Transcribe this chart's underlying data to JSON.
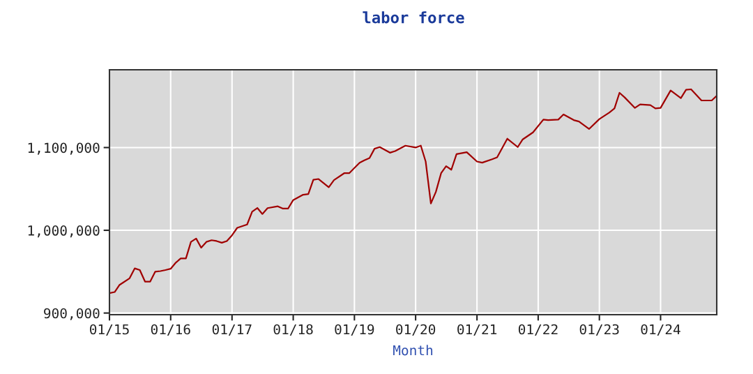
{
  "chart_data": {
    "type": "line",
    "title": "labor force",
    "xlabel": "Month",
    "x": [
      "2015-01",
      "2015-02",
      "2015-03",
      "2015-05",
      "2015-06",
      "2015-07",
      "2015-08",
      "2015-09",
      "2015-10",
      "2015-11",
      "2015-12",
      "2016-01",
      "2016-02",
      "2016-03",
      "2016-04",
      "2016-05",
      "2016-06",
      "2016-07",
      "2016-08",
      "2016-09",
      "2016-10",
      "2016-11",
      "2016-12",
      "2017-01",
      "2017-02",
      "2017-04",
      "2017-05",
      "2017-06",
      "2017-07",
      "2017-08",
      "2017-10",
      "2017-11",
      "2017-12",
      "2018-01",
      "2018-03",
      "2018-04",
      "2018-05",
      "2018-06",
      "2018-08",
      "2018-09",
      "2018-11",
      "2018-12",
      "2019-02",
      "2019-03",
      "2019-04",
      "2019-05",
      "2019-06",
      "2019-08",
      "2019-09",
      "2019-11",
      "2020-01",
      "2020-02",
      "2020-03",
      "2020-04",
      "2020-05",
      "2020-06",
      "2020-07",
      "2020-08",
      "2020-09",
      "2020-11",
      "2021-01",
      "2021-02",
      "2021-04",
      "2021-05",
      "2021-07",
      "2021-09",
      "2021-10",
      "2021-12",
      "2022-02",
      "2022-03",
      "2022-05",
      "2022-06",
      "2022-08",
      "2022-09",
      "2022-11",
      "2023-01",
      "2023-03",
      "2023-04",
      "2023-05",
      "2023-06",
      "2023-08",
      "2023-09",
      "2023-11",
      "2023-12",
      "2024-01",
      "2024-03",
      "2024-05",
      "2024-06",
      "2024-07",
      "2024-09",
      "2024-11",
      "2024-12"
    ],
    "series": [
      {
        "color": "#a00000",
        "values": [
          924000,
          925400,
          933800,
          942000,
          954000,
          952000,
          938000,
          938000,
          950000,
          950700,
          952000,
          953500,
          961000,
          966000,
          966000,
          986000,
          990000,
          979000,
          986000,
          988000,
          987000,
          985000,
          987000,
          994000,
          1003000,
          1007000,
          1022500,
          1027000,
          1019700,
          1026800,
          1029000,
          1026200,
          1026200,
          1036600,
          1043000,
          1043700,
          1061000,
          1062000,
          1052000,
          1060600,
          1069000,
          1069000,
          1081700,
          1084500,
          1087300,
          1098600,
          1100600,
          1093800,
          1095800,
          1102300,
          1100000,
          1102300,
          1083100,
          1032400,
          1046500,
          1069000,
          1077500,
          1073200,
          1092100,
          1094400,
          1083100,
          1081700,
          1085900,
          1088200,
          1110700,
          1100600,
          1109900,
          1118300,
          1133800,
          1133200,
          1133800,
          1140000,
          1133200,
          1131500,
          1122500,
          1134400,
          1142300,
          1147300,
          1166200,
          1160600,
          1147900,
          1152100,
          1151300,
          1147300,
          1147900,
          1169000,
          1159700,
          1169900,
          1170400,
          1156900,
          1156900,
          1162500
        ]
      }
    ],
    "xlim": [
      "2015-01",
      "2024-12"
    ],
    "xticks": [
      {
        "value": "2015-01",
        "label": "01/15"
      },
      {
        "value": "2016-01",
        "label": "01/16"
      },
      {
        "value": "2017-01",
        "label": "01/17"
      },
      {
        "value": "2018-01",
        "label": "01/18"
      },
      {
        "value": "2019-01",
        "label": "01/19"
      },
      {
        "value": "2020-01",
        "label": "01/20"
      },
      {
        "value": "2021-01",
        "label": "01/21"
      },
      {
        "value": "2022-01",
        "label": "01/22"
      },
      {
        "value": "2023-01",
        "label": "01/23"
      },
      {
        "value": "2024-01",
        "label": "01/24"
      }
    ],
    "ylim": [
      898000,
      1194000
    ],
    "yticks": [
      {
        "value": 900000,
        "label": "900,000"
      },
      {
        "value": 1000000,
        "label": "1,000,000"
      },
      {
        "value": 1100000,
        "label": "1,100,000"
      }
    ],
    "grid": true,
    "marker": "none",
    "line_style": "solid"
  }
}
